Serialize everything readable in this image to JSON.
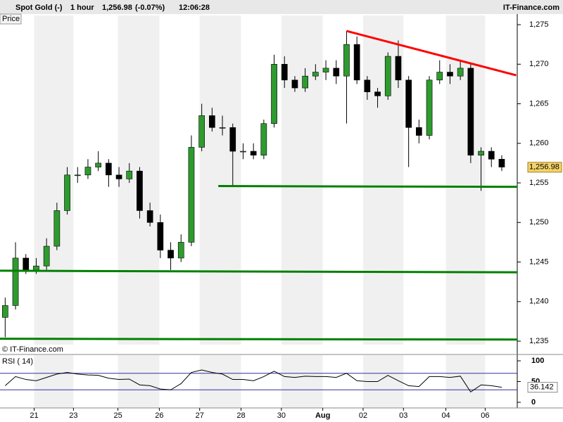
{
  "header": {
    "instrument": "Spot Gold (-)",
    "interval": "1 hour",
    "change": "(-0.07%)",
    "time": "12:06:28",
    "brand": "IT-Finance.com",
    "panel_label": "Price",
    "copyright": "© IT-Finance.com"
  },
  "chart_data": [
    {
      "type": "candlestick",
      "up_color": "#2e9b2e",
      "down_color": "#000000",
      "open": [
        1238,
        1239.5,
        1245.5,
        1244,
        1244.5,
        1247,
        1251.5,
        1256,
        1256,
        1257,
        1257.5,
        1256,
        1255.5,
        1256.5,
        1251.5,
        1250,
        1246.5,
        1245.5,
        1247.5,
        1259.5,
        1263.5,
        1262,
        1262,
        1259,
        1259,
        1258.5,
        1262.5,
        1270,
        1268,
        1267,
        1268.5,
        1269,
        1269.5,
        1268.5,
        1272.5,
        1268,
        1266.5,
        1266,
        1271,
        1268,
        1262,
        1261,
        1268,
        1269,
        1268.5,
        1269.5,
        1258.5,
        1259,
        1258
      ],
      "high": [
        1240.5,
        1247.5,
        1246,
        1245.5,
        1248,
        1252.5,
        1257,
        1257,
        1258,
        1259,
        1258,
        1257,
        1257.5,
        1257,
        1252.5,
        1251,
        1247.5,
        1248.5,
        1261,
        1265,
        1264.5,
        1263.5,
        1262.5,
        1260,
        1260,
        1263,
        1271.2,
        1271,
        1268.5,
        1269.5,
        1270,
        1270.5,
        1270.5,
        1274.2,
        1273.5,
        1268.5,
        1267,
        1271.5,
        1273,
        1268.5,
        1263,
        1268.5,
        1270.5,
        1270,
        1270.5,
        1270,
        1259.5,
        1259.5,
        1258.5
      ],
      "low": [
        1235.5,
        1239,
        1243.5,
        1243.5,
        1244,
        1246.5,
        1251,
        1255,
        1255.5,
        1256.5,
        1254.5,
        1254.5,
        1255,
        1250.5,
        1249.5,
        1245.5,
        1244,
        1245,
        1247,
        1259,
        1261.5,
        1261,
        1254.5,
        1258,
        1258,
        1258,
        1262,
        1267,
        1266.5,
        1266.5,
        1268,
        1268,
        1267.5,
        1262.5,
        1267.5,
        1265.5,
        1264.5,
        1265.5,
        1267,
        1257,
        1260,
        1260.5,
        1267.5,
        1267.5,
        1268,
        1257.5,
        1254,
        1257,
        1256.5
      ],
      "close": [
        1239.5,
        1245.5,
        1244,
        1244.5,
        1247,
        1251.5,
        1256,
        1256,
        1257,
        1257.5,
        1256,
        1255.5,
        1256.5,
        1251.5,
        1250,
        1246.5,
        1245.5,
        1247.5,
        1259.5,
        1263.5,
        1262,
        1262,
        1259,
        1259,
        1258.5,
        1262.5,
        1270,
        1268,
        1267,
        1268.5,
        1269,
        1269.5,
        1268.5,
        1272.5,
        1268,
        1266.5,
        1266,
        1271,
        1268,
        1262,
        1261,
        1268,
        1269,
        1268.5,
        1269.5,
        1258.5,
        1259,
        1258,
        1257
      ],
      "last_price": {
        "value": 1256.98,
        "label": "1,256.98"
      },
      "xlim": [
        -0.5,
        49.5
      ],
      "ylim": [
        1234.56,
        1276.16
      ],
      "yticks": [
        {
          "value": 1235,
          "label": "1,235"
        },
        {
          "value": 1240,
          "label": "1,240"
        },
        {
          "value": 1245,
          "label": "1,245"
        },
        {
          "value": 1250,
          "label": "1,250"
        },
        {
          "value": 1255,
          "label": "1,255"
        },
        {
          "value": 1260,
          "label": "1,260"
        },
        {
          "value": 1265,
          "label": "1,265"
        },
        {
          "value": 1270,
          "label": "1,270"
        },
        {
          "value": 1275,
          "label": "1,275"
        }
      ],
      "trendlines": [
        {
          "color": "#ff0000",
          "x": [
            33,
            49.4
          ],
          "y": [
            1274.2,
            1268.6
          ]
        },
        {
          "color": "#008000",
          "x": [
            20.6,
            49.5
          ],
          "y": [
            1254.6,
            1254.5
          ]
        },
        {
          "color": "#008000",
          "x": [
            -0.5,
            49.5
          ],
          "y": [
            1243.9,
            1243.7
          ]
        },
        {
          "color": "#008000",
          "x": [
            -0.5,
            49.5
          ],
          "y": [
            1235.3,
            1235.2
          ]
        }
      ]
    },
    {
      "type": "line",
      "label": "RSI ( 14)",
      "color": "#000000",
      "level_color": "#3030a0",
      "values": [
        40,
        62,
        55,
        52,
        60,
        68,
        72,
        68,
        66,
        65,
        58,
        55,
        56,
        42,
        40,
        32,
        30,
        45,
        72,
        78,
        72,
        68,
        55,
        55,
        52,
        62,
        75,
        62,
        60,
        63,
        62,
        62,
        60,
        70,
        52,
        50,
        50,
        65,
        52,
        40,
        38,
        62,
        62,
        60,
        63,
        25,
        42,
        40,
        36.142
      ],
      "last_value": 36.142,
      "levels": [
        70,
        30
      ],
      "xlim": [
        -0.5,
        49.5
      ],
      "ylim": [
        -13.6,
        113.6
      ],
      "yticks": [
        100,
        50,
        0
      ],
      "xticks": [
        {
          "value": 2.8,
          "label": "21"
        },
        {
          "value": 6.6,
          "label": "23"
        },
        {
          "value": 10.9,
          "label": "25"
        },
        {
          "value": 14.9,
          "label": "26"
        },
        {
          "value": 18.8,
          "label": "27"
        },
        {
          "value": 22.8,
          "label": "28"
        },
        {
          "value": 26.7,
          "label": "30"
        },
        {
          "value": 30.7,
          "label": "Aug"
        },
        {
          "value": 34.6,
          "label": "02"
        },
        {
          "value": 38.5,
          "label": "03"
        },
        {
          "value": 42.6,
          "label": "04"
        },
        {
          "value": 46.4,
          "label": "06"
        }
      ]
    }
  ]
}
